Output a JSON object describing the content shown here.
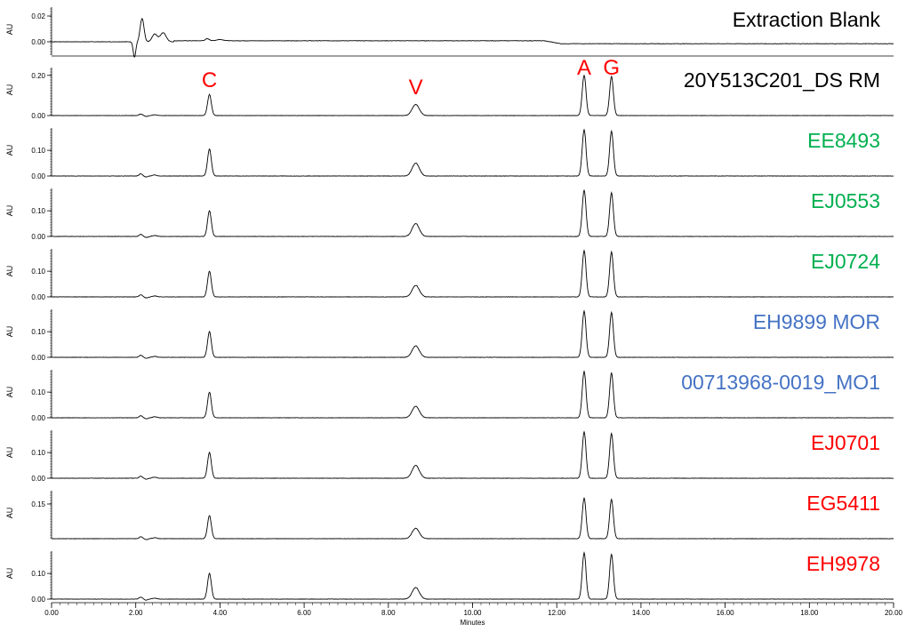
{
  "chart_data": {
    "type": "line",
    "xlabel": "Minutes",
    "ylabel": "AU",
    "xlim": [
      0,
      20
    ],
    "x_ticks": [
      "0.00",
      "2.00",
      "4.00",
      "6.00",
      "8.00",
      "10.00",
      "12.00",
      "14.00",
      "16.00",
      "18.00",
      "20.00"
    ],
    "peak_labels": [
      {
        "text": "C",
        "x": 3.75
      },
      {
        "text": "V",
        "x": 8.65
      },
      {
        "text": "A",
        "x": 12.65
      },
      {
        "text": "G",
        "x": 13.3
      }
    ],
    "panels": [
      {
        "name": "Extraction Blank",
        "color": "#000000",
        "kind": "blank",
        "ylim": [
          -0.008,
          0.022
        ],
        "y_ticks": [
          "0.02",
          "0.00"
        ],
        "y_tick_values": [
          0.02,
          0.0
        ]
      },
      {
        "name": "20Y513C201_DS RM",
        "color": "#000000",
        "kind": "sample",
        "ylim": [
          0,
          0.23
        ],
        "y_ticks": [
          "0.20",
          "0.00"
        ],
        "y_tick_values": [
          0.2,
          0.0
        ],
        "peaks": [
          {
            "x": 3.75,
            "h": 0.105
          },
          {
            "x": 8.65,
            "h": 0.055
          },
          {
            "x": 12.65,
            "h": 0.2
          },
          {
            "x": 13.3,
            "h": 0.195
          }
        ]
      },
      {
        "name": "EE8493",
        "color": "#00b050",
        "kind": "sample",
        "ylim": [
          0,
          0.18
        ],
        "y_ticks": [
          "0.10",
          "0.00"
        ],
        "y_tick_values": [
          0.1,
          0.0
        ],
        "peaks": [
          {
            "x": 3.75,
            "h": 0.105
          },
          {
            "x": 8.65,
            "h": 0.05
          },
          {
            "x": 12.65,
            "h": 0.18
          },
          {
            "x": 13.3,
            "h": 0.175
          }
        ]
      },
      {
        "name": "EJ0553",
        "color": "#00b050",
        "kind": "sample",
        "ylim": [
          0,
          0.18
        ],
        "y_ticks": [
          "0.10",
          "0.00"
        ],
        "y_tick_values": [
          0.1,
          0.0
        ],
        "peaks": [
          {
            "x": 3.75,
            "h": 0.1
          },
          {
            "x": 8.65,
            "h": 0.05
          },
          {
            "x": 12.65,
            "h": 0.18
          },
          {
            "x": 13.3,
            "h": 0.17
          }
        ]
      },
      {
        "name": "EJ0724",
        "color": "#00b050",
        "kind": "sample",
        "ylim": [
          0,
          0.18
        ],
        "y_ticks": [
          "0.10",
          "0.00"
        ],
        "y_tick_values": [
          0.1,
          0.0
        ],
        "peaks": [
          {
            "x": 3.75,
            "h": 0.1
          },
          {
            "x": 8.65,
            "h": 0.045
          },
          {
            "x": 12.65,
            "h": 0.18
          },
          {
            "x": 13.3,
            "h": 0.175
          }
        ]
      },
      {
        "name": "EH9899 MOR",
        "color": "#4472c4",
        "kind": "sample",
        "ylim": [
          0,
          0.18
        ],
        "y_ticks": [
          "0.10",
          "0.00"
        ],
        "y_tick_values": [
          0.1,
          0.0
        ],
        "peaks": [
          {
            "x": 3.75,
            "h": 0.1
          },
          {
            "x": 8.65,
            "h": 0.045
          },
          {
            "x": 12.65,
            "h": 0.18
          },
          {
            "x": 13.3,
            "h": 0.175
          }
        ]
      },
      {
        "name": "00713968-0019_MO1",
        "color": "#4472c4",
        "kind": "sample",
        "ylim": [
          0,
          0.18
        ],
        "y_ticks": [
          "0.10",
          "0.00"
        ],
        "y_tick_values": [
          0.1,
          0.0
        ],
        "peaks": [
          {
            "x": 3.75,
            "h": 0.1
          },
          {
            "x": 8.65,
            "h": 0.045
          },
          {
            "x": 12.65,
            "h": 0.18
          },
          {
            "x": 13.3,
            "h": 0.175
          }
        ]
      },
      {
        "name": "EJ0701",
        "color": "#ff0000",
        "kind": "sample",
        "ylim": [
          0,
          0.18
        ],
        "y_ticks": [
          "0.10",
          "0.00"
        ],
        "y_tick_values": [
          0.1,
          0.0
        ],
        "peaks": [
          {
            "x": 3.75,
            "h": 0.1
          },
          {
            "x": 8.65,
            "h": 0.05
          },
          {
            "x": 12.65,
            "h": 0.18
          },
          {
            "x": 13.3,
            "h": 0.175
          }
        ]
      },
      {
        "name": "EG5411",
        "color": "#ff0000",
        "kind": "sample",
        "ylim": [
          0,
          0.2
        ],
        "y_ticks": [
          "0.15"
        ],
        "y_tick_values": [
          0.15
        ],
        "peaks": [
          {
            "x": 3.75,
            "h": 0.1
          },
          {
            "x": 8.65,
            "h": 0.045
          },
          {
            "x": 12.65,
            "h": 0.175
          },
          {
            "x": 13.3,
            "h": 0.17
          }
        ]
      },
      {
        "name": "EH9978",
        "color": "#ff0000",
        "kind": "sample",
        "ylim": [
          0,
          0.18
        ],
        "y_ticks": [
          "0.10",
          "0.00"
        ],
        "y_tick_values": [
          0.1,
          0.0
        ],
        "peaks": [
          {
            "x": 3.75,
            "h": 0.1
          },
          {
            "x": 8.65,
            "h": 0.045
          },
          {
            "x": 12.65,
            "h": 0.18
          },
          {
            "x": 13.3,
            "h": 0.175
          }
        ]
      }
    ]
  }
}
